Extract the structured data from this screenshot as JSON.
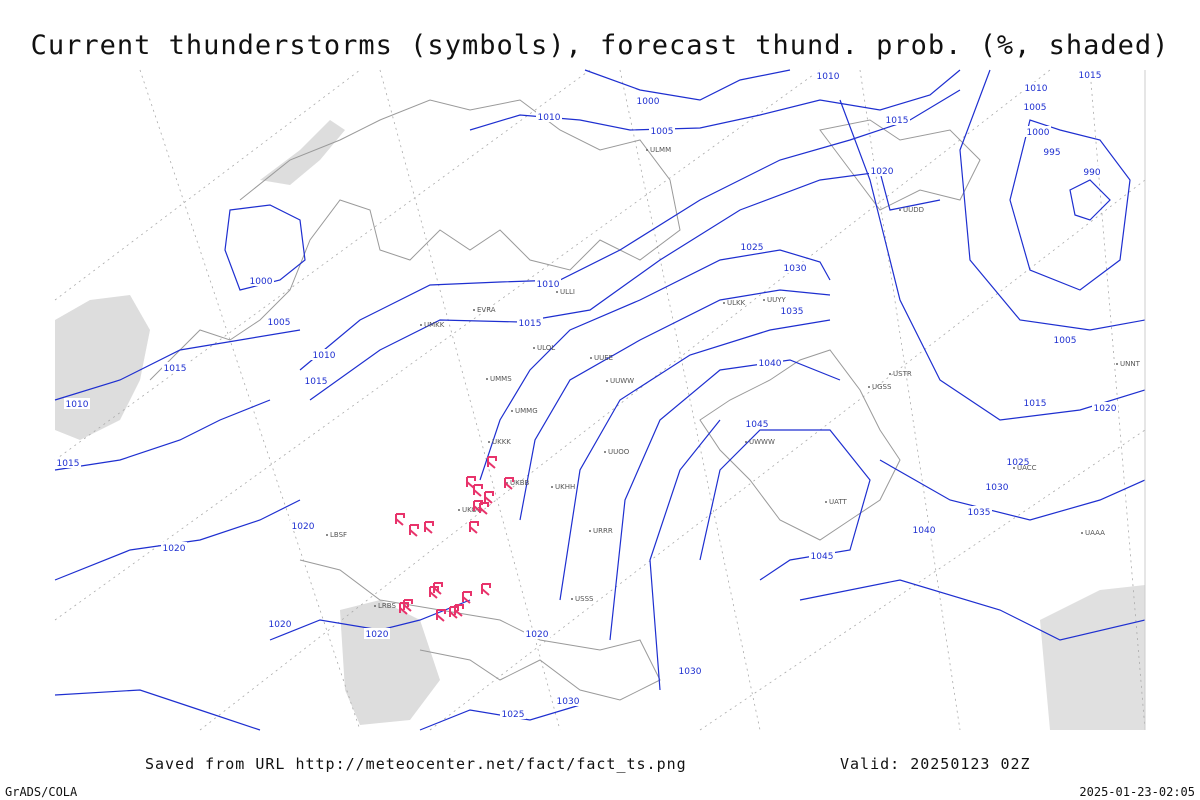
{
  "header": {
    "title": "Current thunderstorms (symbols), forecast thund. prob. (%, shaded)"
  },
  "map": {
    "isobar_labels": [
      "1010",
      "1000",
      "1010",
      "1005",
      "1015",
      "1020",
      "1025",
      "1030",
      "1035",
      "1040",
      "1045",
      "1045",
      "1010",
      "1015",
      "1010",
      "1015",
      "1000",
      "1005",
      "1015",
      "1010",
      "1015",
      "1020",
      "1020",
      "1020",
      "1020",
      "1020",
      "1025",
      "1030",
      "1030",
      "1040",
      "1035",
      "1030",
      "1025",
      "1015",
      "1005",
      "1020",
      "990",
      "995",
      "1000",
      "1005",
      "1010",
      "1015"
    ],
    "stations": [
      "ULMM",
      "ULLI",
      "UUEE",
      "UMMS",
      "UKKK",
      "UKBB",
      "UUOO",
      "URRR",
      "UMKK",
      "EVRA",
      "ULOL",
      "UUWW",
      "UKHH",
      "UGSS",
      "UUYY",
      "ULKK",
      "UUDD",
      "UWWW",
      "UATT",
      "UACC",
      "USSS",
      "USTR",
      "UNNT",
      "UAAA",
      "LBSF",
      "LRBS",
      "UKOO",
      "UMMG"
    ]
  },
  "footer": {
    "source": "Saved from URL http://meteocenter.net/fact/fact_ts.png",
    "valid": "Valid: 20250123 02Z",
    "credit": "GrADS/COLA",
    "timestamp": "2025-01-23-02:05"
  }
}
